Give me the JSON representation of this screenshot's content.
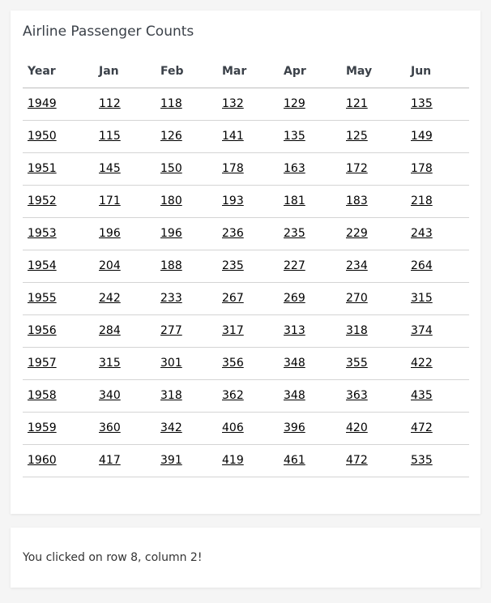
{
  "title": "Airline Passenger Counts",
  "columns": [
    "Year",
    "Jan",
    "Feb",
    "Mar",
    "Apr",
    "May",
    "Jun"
  ],
  "rows": [
    [
      "1949",
      "112",
      "118",
      "132",
      "129",
      "121",
      "135"
    ],
    [
      "1950",
      "115",
      "126",
      "141",
      "135",
      "125",
      "149"
    ],
    [
      "1951",
      "145",
      "150",
      "178",
      "163",
      "172",
      "178"
    ],
    [
      "1952",
      "171",
      "180",
      "193",
      "181",
      "183",
      "218"
    ],
    [
      "1953",
      "196",
      "196",
      "236",
      "235",
      "229",
      "243"
    ],
    [
      "1954",
      "204",
      "188",
      "235",
      "227",
      "234",
      "264"
    ],
    [
      "1955",
      "242",
      "233",
      "267",
      "269",
      "270",
      "315"
    ],
    [
      "1956",
      "284",
      "277",
      "317",
      "313",
      "318",
      "374"
    ],
    [
      "1957",
      "315",
      "301",
      "356",
      "348",
      "355",
      "422"
    ],
    [
      "1958",
      "340",
      "318",
      "362",
      "348",
      "363",
      "435"
    ],
    [
      "1959",
      "360",
      "342",
      "406",
      "396",
      "420",
      "472"
    ],
    [
      "1960",
      "417",
      "391",
      "419",
      "461",
      "472",
      "535"
    ]
  ],
  "status": {
    "message": "You clicked on row 8, column 2!"
  }
}
